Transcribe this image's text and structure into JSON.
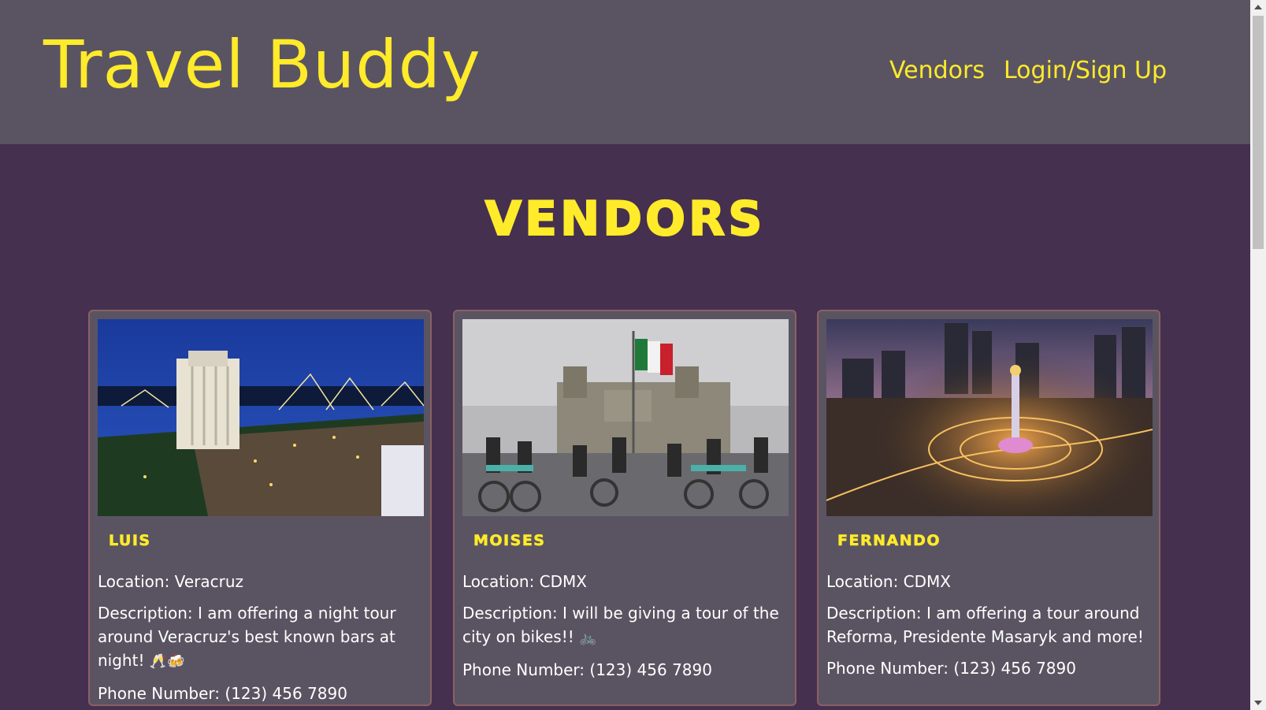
{
  "header": {
    "brand": "Travel Buddy",
    "nav": {
      "vendors": "Vendors",
      "login": "Login/Sign Up"
    }
  },
  "page": {
    "title": "VENDORS"
  },
  "vendors": [
    {
      "name": "LUIS",
      "location": "Location: Veracruz",
      "description": "Description: I am offering a night tour around Veracruz's best known bars at night!",
      "emoji": "🥂🍻",
      "phone": "Phone Number: (123) 456 7890",
      "image": "veracruz-night-harbor-photo"
    },
    {
      "name": "MOISES",
      "location": "Location: CDMX",
      "description": "Description: I will be giving a tour of the city on bikes!!",
      "emoji": "🚲",
      "phone": "Phone Number: (123) 456 7890",
      "image": "zocalo-cyclists-photo"
    },
    {
      "name": "FERNANDO",
      "location": "Location: CDMX",
      "description": "Description: I am offering a tour around Reforma, Presidente Masaryk and more!",
      "emoji": "",
      "phone": "Phone Number: (123) 456 7890",
      "image": "reforma-angel-night-photo"
    }
  ],
  "colors": {
    "accent": "#ffeb2a",
    "header_bg": "#5a5462",
    "page_bg": "#45304f",
    "card_border": "#8b6063"
  }
}
